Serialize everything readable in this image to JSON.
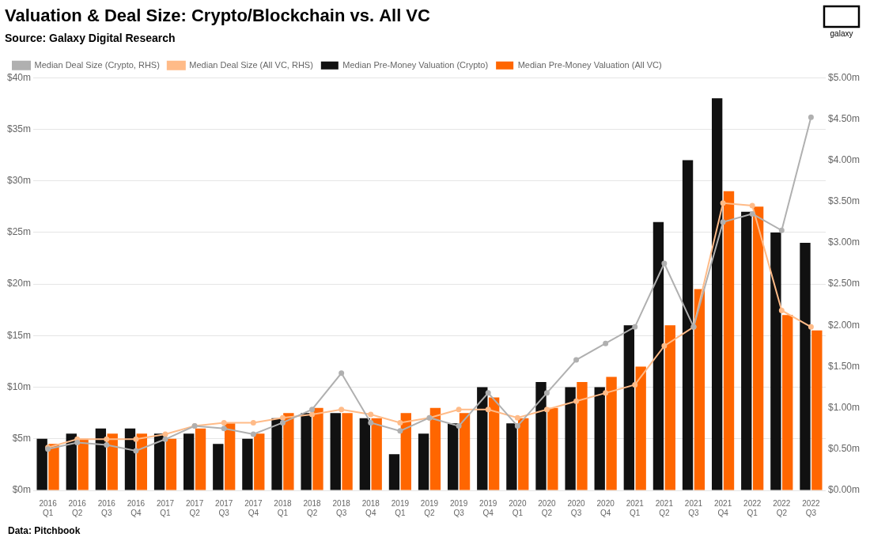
{
  "chart_data": {
    "type": "bar",
    "title": "Valuation & Deal Size: Crypto/Blockchain vs. All VC",
    "subtitle": "Source: Galaxy Digital Research",
    "annotations": [
      "Data: Pitchbook",
      "galaxy"
    ],
    "categories": [
      "2016\nQ1",
      "2016\nQ2",
      "2016\nQ3",
      "2016\nQ4",
      "2017\nQ1",
      "2017\nQ2",
      "2017\nQ3",
      "2017\nQ4",
      "2018\nQ1",
      "2018\nQ2",
      "2018\nQ3",
      "2018\nQ4",
      "2019\nQ1",
      "2019\nQ2",
      "2019\nQ3",
      "2019\nQ4",
      "2020\nQ1",
      "2020\nQ2",
      "2020\nQ3",
      "2020\nQ4",
      "2021\nQ1",
      "2021\nQ2",
      "2021\nQ3",
      "2021\nQ4",
      "2022\nQ1",
      "2022\nQ2",
      "2022\nQ3"
    ],
    "series": [
      {
        "name": "Median Pre-Money Valuation (Crypto)",
        "type": "bar",
        "color": "#111111",
        "values": [
          5,
          5.5,
          6,
          6,
          5.5,
          5.5,
          4.5,
          5,
          7,
          7.5,
          7.5,
          7,
          3.5,
          5.5,
          6.5,
          10,
          6.5,
          10.5,
          10,
          10,
          16,
          26,
          32,
          38,
          27,
          25,
          24
        ]
      },
      {
        "name": "Median Pre-Money Valuation (All VC)",
        "type": "bar",
        "color": "#FF6600",
        "values": [
          4.5,
          5,
          5.5,
          5.5,
          5,
          6,
          6.5,
          5.5,
          7.5,
          8,
          7.5,
          7,
          7.5,
          8,
          7.5,
          9,
          7,
          8,
          10.5,
          11,
          12,
          16,
          19.5,
          29,
          27.5,
          17,
          15.5
        ]
      },
      {
        "name": "Median Deal Size (Crypto, RHS)",
        "type": "line",
        "axis": "y2",
        "marker": "circle",
        "color": "#b0b0b0",
        "values": [
          0.5,
          0.58,
          0.55,
          0.48,
          0.62,
          0.78,
          0.75,
          0.68,
          0.82,
          0.98,
          1.42,
          0.82,
          0.72,
          0.88,
          0.78,
          1.18,
          0.78,
          1.18,
          1.58,
          1.78,
          1.98,
          2.75,
          1.98,
          3.25,
          3.35,
          3.15,
          4.52
        ]
      },
      {
        "name": "Median Deal Size (All VC, RHS)",
        "type": "line",
        "axis": "y2",
        "marker": "circle",
        "color": "#FFBB88",
        "values": [
          0.52,
          0.62,
          0.62,
          0.62,
          0.68,
          0.78,
          0.82,
          0.82,
          0.88,
          0.92,
          0.98,
          0.92,
          0.82,
          0.88,
          0.98,
          0.98,
          0.88,
          0.98,
          1.08,
          1.18,
          1.28,
          1.75,
          1.98,
          3.48,
          3.45,
          2.18,
          1.98
        ]
      }
    ],
    "ylim": [
      0,
      40
    ],
    "yticks": [
      {
        "value": 0,
        "label": "$0m"
      },
      {
        "value": 5,
        "label": "$5m"
      },
      {
        "value": 10,
        "label": "$10m"
      },
      {
        "value": 15,
        "label": "$15m"
      },
      {
        "value": 20,
        "label": "$20m"
      },
      {
        "value": 25,
        "label": "$25m"
      },
      {
        "value": 30,
        "label": "$30m"
      },
      {
        "value": 35,
        "label": "$35m"
      },
      {
        "value": 40,
        "label": "$40m"
      }
    ],
    "y2lim": [
      0,
      5.0
    ],
    "y2ticks": [
      {
        "value": 0.0,
        "label": "$0.00m"
      },
      {
        "value": 0.5,
        "label": "$0.50m"
      },
      {
        "value": 1.0,
        "label": "$1.00m"
      },
      {
        "value": 1.5,
        "label": "$1.50m"
      },
      {
        "value": 2.0,
        "label": "$2.00m"
      },
      {
        "value": 2.5,
        "label": "$2.50m"
      },
      {
        "value": 3.0,
        "label": "$3.00m"
      },
      {
        "value": 3.5,
        "label": "$3.50m"
      },
      {
        "value": 4.0,
        "label": "$4.00m"
      },
      {
        "value": 4.5,
        "label": "$4.50m"
      },
      {
        "value": 5.0,
        "label": "$5.00m"
      }
    ],
    "grid": true,
    "legend": "upper left"
  }
}
